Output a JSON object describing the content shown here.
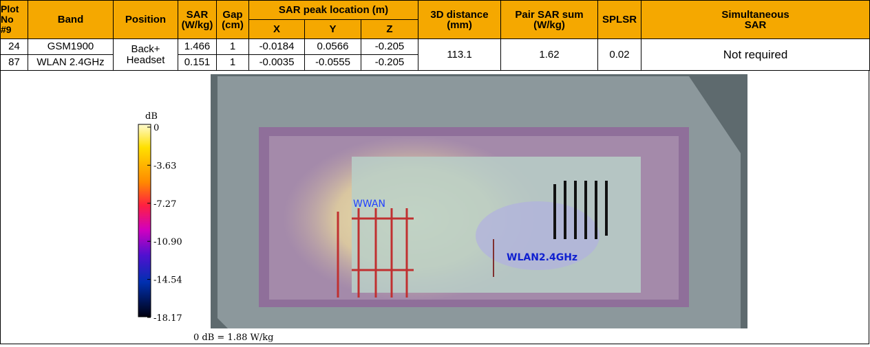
{
  "table": {
    "header": {
      "plot_no": "Plot\nNo\n#9",
      "band": "Band",
      "position": "Position",
      "sar": "SAR\n(W/kg)",
      "gap": "Gap\n(cm)",
      "peak": "SAR peak location (m)",
      "x": "X",
      "y": "Y",
      "z": "Z",
      "distance": "3D distance\n(mm)",
      "pair_sum": "Pair SAR sum\n(W/kg)",
      "splsr": "SPLSR",
      "simultaneous": "Simultaneous\nSAR"
    },
    "rows": [
      [
        "24",
        "GSM1900",
        "Back+\nHeadset",
        "1.466",
        "1",
        "-0.0184",
        "0.0566",
        "-0.205",
        "113.1",
        "1.62",
        "0.02",
        "Not required"
      ],
      [
        "87",
        "WLAN 2.4GHz",
        "0.151",
        "1",
        "-0.0035",
        "-0.0555",
        "-0.205"
      ]
    ]
  },
  "plot": {
    "unit": "dB",
    "scale_labels": [
      "0",
      "-3.63",
      "-7.27",
      "-10.90",
      "-14.54",
      "-18.17"
    ],
    "label_wwan": "WWAN",
    "label_wlan": "WLAN2.4GHz",
    "caption": "0 dB = 1.88 W/kg"
  }
}
